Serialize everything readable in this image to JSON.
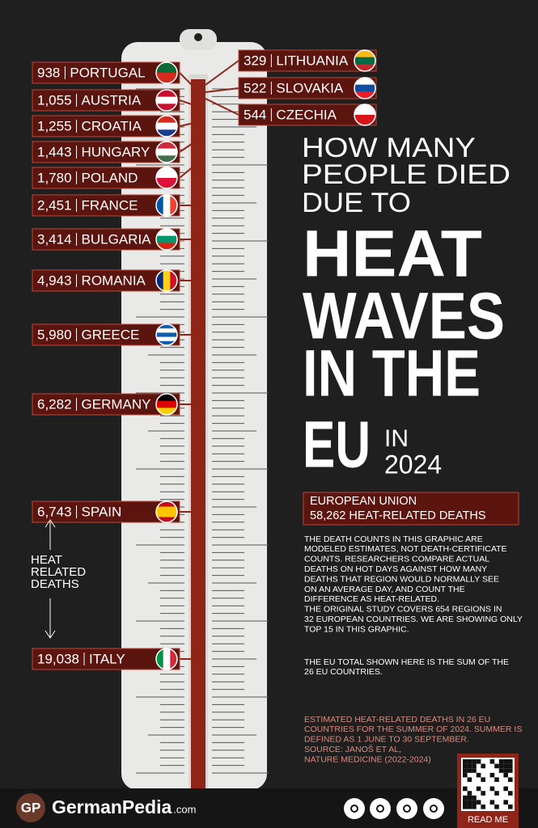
{
  "left_items": [
    {
      "value": "938",
      "country": "PORTUGAL"
    },
    {
      "value": "1,055",
      "country": "AUSTRIA"
    },
    {
      "value": "1,255",
      "country": "CROATIA"
    },
    {
      "value": "1,443",
      "country": "HUNGARY"
    },
    {
      "value": "1,780",
      "country": "POLAND"
    },
    {
      "value": "2,451",
      "country": "FRANCE"
    },
    {
      "value": "3,414",
      "country": "BULGARIA"
    },
    {
      "value": "4,943",
      "country": "ROMANIA"
    },
    {
      "value": "5,980",
      "country": "GREECE"
    },
    {
      "value": "6,282",
      "country": "GERMANY"
    },
    {
      "value": "6,743",
      "country": "SPAIN"
    },
    {
      "value": "19,038",
      "country": "ITALY"
    }
  ],
  "right_items": [
    {
      "value": "329",
      "country": "LITHUANIA"
    },
    {
      "value": "522",
      "country": "SLOVAKIA"
    },
    {
      "value": "544",
      "country": "CZECHIA"
    }
  ],
  "title": {
    "lead": [
      "HOW MANY",
      "PEOPLE DIED",
      "DUE TO"
    ],
    "main": [
      "HEAT",
      "WAVES",
      "IN THE",
      "EU"
    ],
    "in": "IN",
    "year": "2024"
  },
  "total": {
    "region": "EUROPEAN UNION",
    "deaths": "58,262 HEAT-RELATED DEATHS"
  },
  "side_label": [
    "HEAT",
    "RELATED",
    "DEATHS"
  ],
  "notes": [
    "THE DEATH COUNTS IN THIS GRAPHIC ARE",
    "MODELED ESTIMATES, NOT DEATH-CERTIFICATE",
    "COUNTS. RESEARCHERS COMPARE ACTUAL",
    "DEATHS ON HOT DAYS AGAINST HOW MANY",
    "DEATHS THAT REGION WOULD NORMALLY SEE",
    "ON AN AVERAGE DAY, AND COUNT THE",
    "DIFFERENCE AS HEAT-RELATED.",
    "THE ORIGINAL STUDY COVERS 654 REGIONS IN",
    "32 EUROPEAN COUNTRIES. WE ARE SHOWING ONLY",
    "TOP 15 IN THIS GRAPHIC."
  ],
  "notes2": [
    "THE EU TOTAL SHOWN HERE IS THE SUM OF THE",
    "26 EU COUNTRIES."
  ],
  "source": [
    "ESTIMATED HEAT-RELATED DEATHS IN 26 EU",
    "COUNTRIES FOR THE SUMMER OF 2024. SUMMER IS",
    "DEFINED AS 1 JUNE TO 30 SEPTEMBER.",
    "SOURCE: JANOŠ ET AL,",
    "NATURE MEDICINE (2022-2024)"
  ],
  "footer": {
    "logo": "GP",
    "brand": "GermanPedia",
    "domain": ".com",
    "read_me": "READ ME"
  }
}
